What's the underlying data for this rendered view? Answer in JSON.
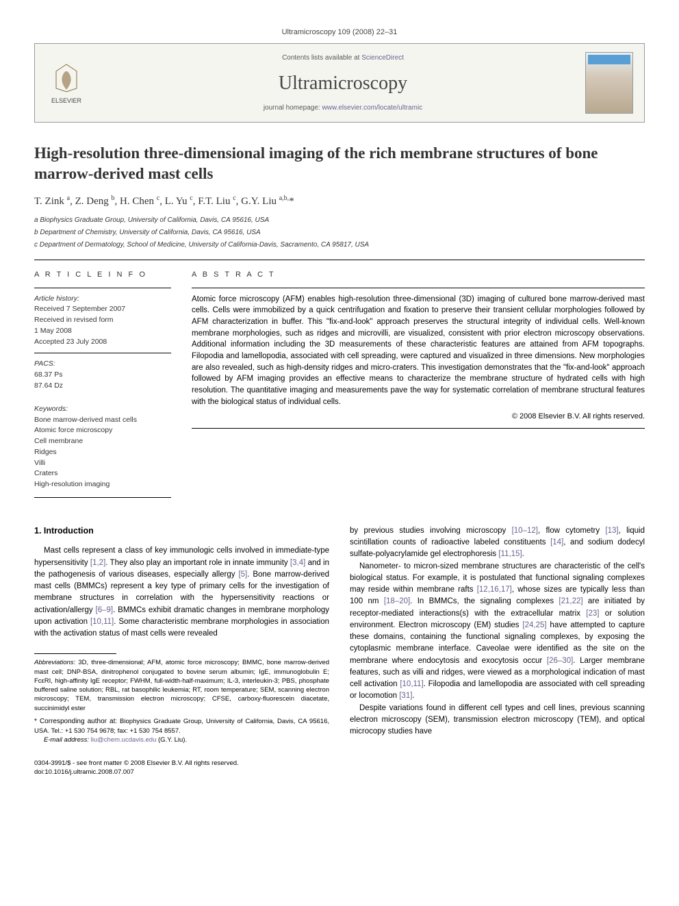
{
  "journal_header": "Ultramicroscopy 109 (2008) 22–31",
  "contents_line_prefix": "Contents lists available at ",
  "contents_line_link": "ScienceDirect",
  "journal_name": "Ultramicroscopy",
  "homepage_prefix": "journal homepage: ",
  "homepage_link": "www.elsevier.com/locate/ultramic",
  "elsevier_label": "ELSEVIER",
  "title": "High-resolution three-dimensional imaging of the rich membrane structures of bone marrow-derived mast cells",
  "authors_html": "T. Zink <sup>a</sup>, Z. Deng <sup>b</sup>, H. Chen <sup>c</sup>, L. Yu <sup>c</sup>, F.T. Liu <sup>c</sup>, G.Y. Liu <sup>a,b,</sup>*",
  "affiliations": [
    "a Biophysics Graduate Group, University of California, Davis, CA 95616, USA",
    "b Department of Chemistry, University of California, Davis, CA 95616, USA",
    "c Department of Dermatology, School of Medicine, University of California-Davis, Sacramento, CA 95817, USA"
  ],
  "article_info_head": "A R T I C L E  I N F O",
  "abstract_head": "A B S T R A C T",
  "history_label": "Article history:",
  "history_lines": [
    "Received 7 September 2007",
    "Received in revised form",
    "1 May 2008",
    "Accepted 23 July 2008"
  ],
  "pacs_label": "PACS:",
  "pacs_lines": [
    "68.37 Ps",
    "87.64 Dz"
  ],
  "keywords_label": "Keywords:",
  "keywords": [
    "Bone marrow-derived mast cells",
    "Atomic force microscopy",
    "Cell membrane",
    "Ridges",
    "Villi",
    "Craters",
    "High-resolution imaging"
  ],
  "abstract": "Atomic force microscopy (AFM) enables high-resolution three-dimensional (3D) imaging of cultured bone marrow-derived mast cells. Cells were immobilized by a quick centrifugation and fixation to preserve their transient cellular morphologies followed by AFM characterization in buffer. This \"fix-and-look\" approach preserves the structural integrity of individual cells. Well-known membrane morphologies, such as ridges and microvilli, are visualized, consistent with prior electron microscopy observations. Additional information including the 3D measurements of these characteristic features are attained from AFM topographs. Filopodia and lamellopodia, associated with cell spreading, were captured and visualized in three dimensions. New morphologies are also revealed, such as high-density ridges and micro-craters. This investigation demonstrates that the \"fix-and-look\" approach followed by AFM imaging provides an effective means to characterize the membrane structure of hydrated cells with high resolution. The quantitative imaging and measurements pave the way for systematic correlation of membrane structural features with the biological status of individual cells.",
  "copyright": "© 2008 Elsevier B.V. All rights reserved.",
  "intro_heading": "1.  Introduction",
  "col1_html": "Mast cells represent a class of key immunologic cells involved in immediate-type hypersensitivity <span class=\"ref\">[1,2]</span>. They also play an important role in innate immunity <span class=\"ref\">[3,4]</span> and in the pathogenesis of various diseases, especially allergy <span class=\"ref\">[5]</span>. Bone marrow-derived mast cells (BMMCs) represent a key type of primary cells for the investigation of membrane structures in correlation with the hypersensitivity reactions or activation/allergy <span class=\"ref\">[6–9]</span>. BMMCs exhibit dramatic changes in membrane morphology upon activation <span class=\"ref\">[10,11]</span>. Some characteristic membrane morphologies in association with the activation status of mast cells were revealed",
  "col2_p1_html": "by previous studies involving microscopy <span class=\"ref\">[10–12]</span>, flow cytometry <span class=\"ref\">[13]</span>, liquid scintillation counts of radioactive labeled constituents <span class=\"ref\">[14]</span>, and sodium dodecyl sulfate-polyacrylamide gel electrophoresis <span class=\"ref\">[11,15]</span>.",
  "col2_p2_html": "Nanometer- to micron-sized membrane structures are characteristic of the cell's biological status. For example, it is postulated that functional signaling complexes may reside within membrane rafts <span class=\"ref\">[12,16,17]</span>, whose sizes are typically less than 100 nm <span class=\"ref\">[18–20]</span>. In BMMCs, the signaling complexes <span class=\"ref\">[21,22]</span> are initiated by receptor-mediated interactions(s) with the extracellular matrix <span class=\"ref\">[23]</span> or solution environment. Electron microscopy (EM) studies <span class=\"ref\">[24,25]</span> have attempted to capture these domains, containing the functional signaling complexes, by exposing the cytoplasmic membrane interface. Caveolae were identified as the site on the membrane where endocytosis and exocytosis occur <span class=\"ref\">[26–30]</span>. Larger membrane features, such as villi and ridges, were viewed as a morphological indication of mast cell activation <span class=\"ref\">[10,11]</span>. Filopodia and lamellopodia are associated with cell spreading or locomotion <span class=\"ref\">[31]</span>.",
  "col2_p3_html": "Despite variations found in different cell types and cell lines, previous scanning electron microscopy (SEM), transmission electron microscopy (TEM), and optical microcopy studies have",
  "abbrev_label": "Abbreviations:",
  "abbrev_text": " 3D, three-dimensional; AFM, atomic force microscopy; BMMC, bone marrow-derived mast cell; DNP-BSA, dinitrophenol conjugated to bovine serum albumin; IgE, immunoglobulin E; FcεRI, high-affinity IgE receptor; FWHM, full-width-half-maximum; IL-3, interleukin-3; PBS, phosphate buffered saline solution; RBL, rat basophilic leukemia; RT, room temperature; SEM, scanning electron microscopy; TEM, transmission electron microscopy; CFSE, carboxy-fluorescein diacetate, succinimidyl ester",
  "corr_label": "* Corresponding author at:",
  "corr_text": " Biophysics Graduate Group, University of California, Davis, CA 95616, USA. Tel.: +1 530 754 9678; fax: +1 530 754 8557.",
  "email_label": "E-mail address:",
  "email_value": "liu@chem.ucdavis.edu",
  "email_suffix": " (G.Y. Liu).",
  "footer_line1": "0304-3991/$ - see front matter © 2008 Elsevier B.V. All rights reserved.",
  "footer_line2": "doi:10.1016/j.ultramic.2008.07.007",
  "colors": {
    "link": "#6b5f8f",
    "text": "#000000",
    "headerbg": "#f5f5f0",
    "thumbtop": "#5a9fd4"
  }
}
